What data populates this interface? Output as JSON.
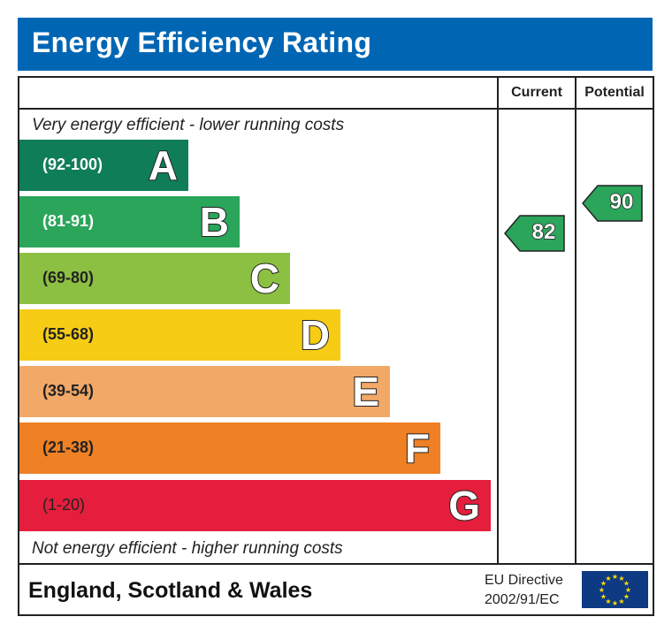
{
  "chart_data": {
    "type": "bar",
    "title": "Energy Efficiency Rating",
    "columns": [
      "Current",
      "Potential"
    ],
    "top_note": "Very energy efficient - lower running costs",
    "bottom_note": "Not energy efficient - higher running costs",
    "bands": [
      {
        "letter": "A",
        "range": "(92-100)",
        "min": 92,
        "max": 100,
        "color": "#0f7d58"
      },
      {
        "letter": "B",
        "range": "(81-91)",
        "min": 81,
        "max": 91,
        "color": "#2aa55a"
      },
      {
        "letter": "C",
        "range": "(69-80)",
        "min": 69,
        "max": 80,
        "color": "#8cc042"
      },
      {
        "letter": "D",
        "range": "(55-68)",
        "min": 55,
        "max": 68,
        "color": "#f6cc15"
      },
      {
        "letter": "E",
        "range": "(39-54)",
        "min": 39,
        "max": 54,
        "color": "#f2a867"
      },
      {
        "letter": "F",
        "range": "(21-38)",
        "min": 21,
        "max": 38,
        "color": "#ef8024"
      },
      {
        "letter": "G",
        "range": "(1-20)",
        "min": 1,
        "max": 20,
        "color": "#e41e3c"
      }
    ],
    "current": {
      "value": 82,
      "label": "82",
      "band": "B"
    },
    "potential": {
      "value": 90,
      "label": "90",
      "band": "B"
    }
  },
  "footer": {
    "region": "England, Scotland & Wales",
    "directive_line1": "EU Directive",
    "directive_line2": "2002/91/EC",
    "flag": "eu-flag-icon"
  },
  "colors": {
    "title_bar": "#0066b3",
    "eu_flag": "#0d3a82",
    "eu_stars": "#ffdd00"
  }
}
